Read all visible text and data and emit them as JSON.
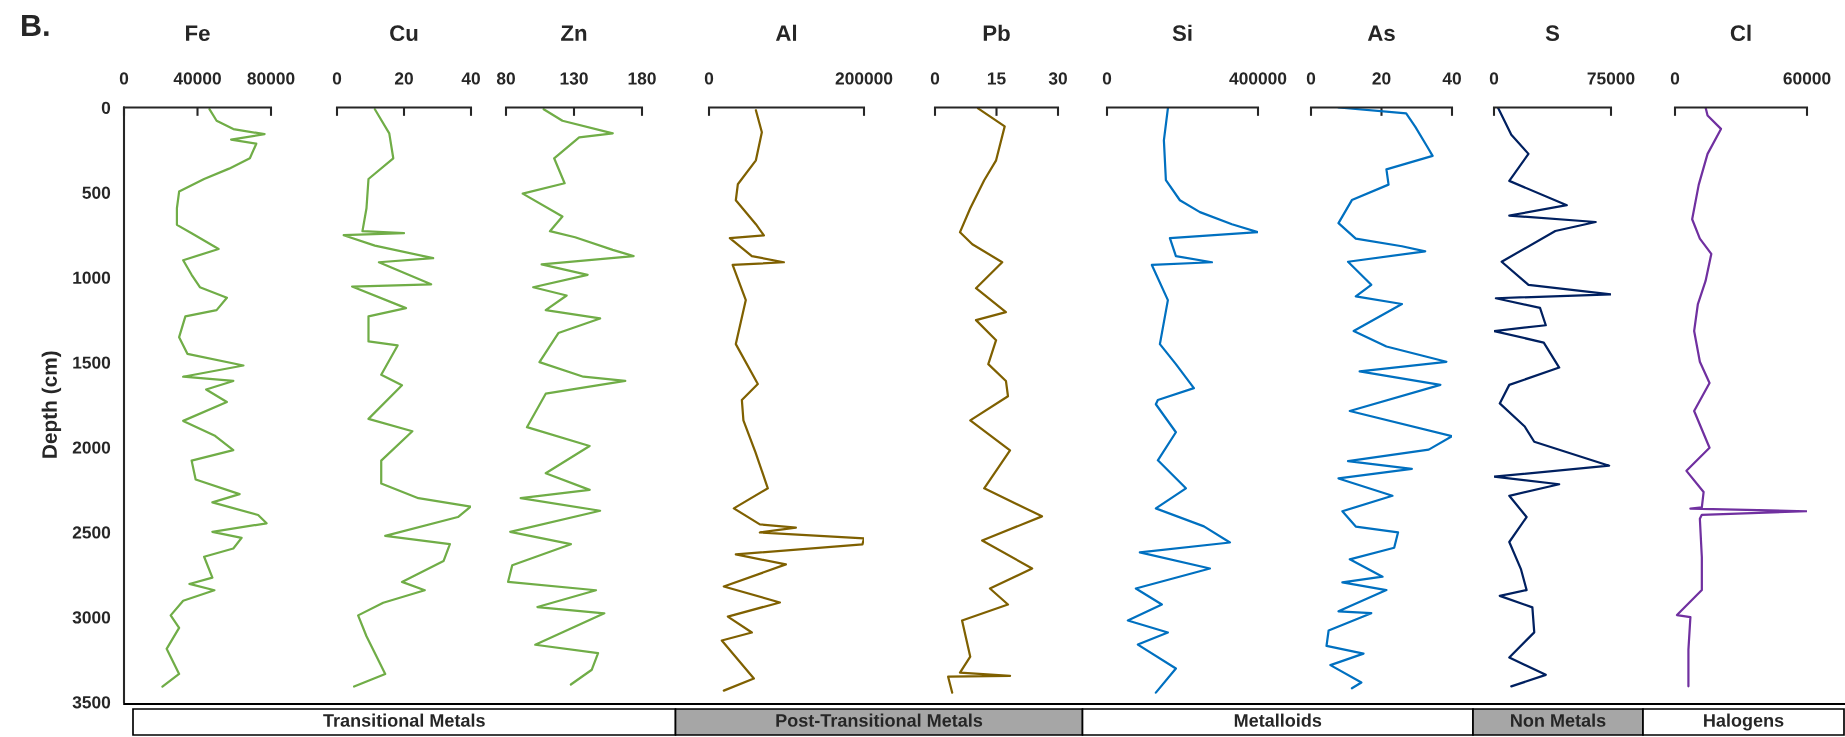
{
  "chart_data": [
    {
      "type": "line",
      "title": "Fe",
      "ylabel": "Depth (cm)",
      "annotations": [
        "B.",
        "Transitional Metals"
      ],
      "xlim": [
        0,
        80000
      ],
      "xticks": [
        0,
        40000,
        80000
      ],
      "ylim": [
        3500,
        0
      ],
      "yticks": [
        0,
        500,
        1000,
        1500,
        2000,
        2500,
        3000,
        3500
      ],
      "grid": false,
      "series": [
        {
          "color": "#70ad47",
          "x": [
            46500,
            50400,
            59500,
            76500,
            58300,
            72000,
            68500,
            57200,
            43600,
            30000,
            28800,
            28800,
            36800,
            51500,
            32200,
            36800,
            41300,
            56000,
            50400,
            33400,
            30000,
            34500,
            65000,
            32200,
            59500,
            44700,
            56000,
            32200,
            49200,
            59500,
            36800,
            39000,
            62900,
            48100,
            73000,
            77600,
            48100,
            64000,
            59500,
            43600,
            48100,
            35600,
            49200,
            32200,
            25400,
            30000,
            23200,
            30000,
            20900
          ],
          "values": [
            10,
            78,
            127,
            157,
            189,
            213,
            299,
            360,
            421,
            495,
            593,
            691,
            740,
            833,
            899,
            985,
            1058,
            1120,
            1193,
            1230,
            1352,
            1450,
            1519,
            1585,
            1610,
            1660,
            1734,
            1845,
            1931,
            2017,
            2079,
            2190,
            2276,
            2325,
            2399,
            2448,
            2498,
            2534,
            2596,
            2645,
            2768,
            2805,
            2842,
            2904,
            2990,
            3064,
            3187,
            3335,
            3409
          ]
        }
      ]
    },
    {
      "type": "line",
      "title": "Cu",
      "xlim": [
        0,
        40
      ],
      "xticks": [
        0,
        20,
        40
      ],
      "ylim": [
        3500,
        0
      ],
      "tick_labels": "x",
      "grid": false,
      "series": [
        {
          "color": "#70ad47",
          "x": [
            11.3,
            15.6,
            16.8,
            9.4,
            8.8,
            7.6,
            20.0,
            2.0,
            11.3,
            28.7,
            12.5,
            28.1,
            4.5,
            20.6,
            9.4,
            9.4,
            18.1,
            13.2,
            19.4,
            9.4,
            22.5,
            13.2,
            13.2,
            24.3,
            39.9,
            36.1,
            14.4,
            33.7,
            31.8,
            19.4,
            26.2,
            13.8,
            6.3,
            8.8,
            14.4,
            5.1
          ],
          "values": [
            10,
            152,
            299,
            421,
            593,
            728,
            740,
            752,
            813,
            887,
            911,
            1041,
            1054,
            1181,
            1230,
            1377,
            1401,
            1573,
            1635,
            1833,
            1906,
            2079,
            2214,
            2300,
            2350,
            2411,
            2522,
            2571,
            2670,
            2793,
            2842,
            2916,
            2990,
            3113,
            3335,
            3409
          ]
        }
      ]
    },
    {
      "type": "line",
      "title": "Zn",
      "xlim": [
        80,
        180
      ],
      "xticks": [
        80,
        130,
        180
      ],
      "ylim": [
        3500,
        0
      ],
      "tick_labels": "x",
      "grid": false,
      "series": [
        {
          "color": "#70ad47",
          "x": [
            107.7,
            121.5,
            158.5,
            133.8,
            115.4,
            123.1,
            92.3,
            121.5,
            112.3,
            130.8,
            158.5,
            173.8,
            106.2,
            140.0,
            100.0,
            124.6,
            109.2,
            149.2,
            118.5,
            104.6,
            136.9,
            167.7,
            109.2,
            95.4,
            141.5,
            109.2,
            141.5,
            90.8,
            149.2,
            83.1,
            127.7,
            84.6,
            81.5,
            146.2,
            103.1,
            152.3,
            101.5,
            147.7,
            143.1,
            127.7
          ],
          "values": [
            10,
            78,
            152,
            176,
            299,
            446,
            507,
            642,
            728,
            764,
            838,
            875,
            924,
            985,
            1058,
            1107,
            1193,
            1242,
            1328,
            1499,
            1585,
            1610,
            1685,
            1882,
            1993,
            2153,
            2251,
            2300,
            2374,
            2498,
            2571,
            2695,
            2793,
            2842,
            2941,
            2978,
            3163,
            3212,
            3310,
            3397
          ]
        }
      ]
    },
    {
      "type": "line",
      "title": "Al",
      "annotations": [
        "Post-Transitional Metals"
      ],
      "xlim": [
        0,
        200000
      ],
      "xticks": [
        0,
        200000
      ],
      "ylim": [
        3500,
        0
      ],
      "tick_labels": "x",
      "grid": false,
      "series": [
        {
          "color": "#7f6000",
          "x": [
            60500,
            68200,
            60500,
            37200,
            34600,
            60500,
            70800,
            26900,
            55300,
            96600,
            30500,
            47500,
            34600,
            63000,
            42400,
            44400,
            60000,
            75900,
            32000,
            65600,
            112100,
            65600,
            200000,
            198000,
            34600,
            99200,
            19100,
            91500,
            24300,
            55300,
            16500,
            57900,
            19100
          ],
          "values": [
            16,
            146,
            311,
            452,
            546,
            687,
            753,
            769,
            875,
            911,
            927,
            1134,
            1393,
            1628,
            1722,
            1842,
            2030,
            2242,
            2360,
            2454,
            2473,
            2502,
            2537,
            2572,
            2631,
            2690,
            2820,
            2914,
            2997,
            3091,
            3138,
            3362,
            3433
          ]
        }
      ]
    },
    {
      "type": "line",
      "title": "Pb",
      "xlim": [
        0,
        30
      ],
      "xticks": [
        0,
        15,
        30
      ],
      "ylim": [
        3500,
        0
      ],
      "tick_labels": "x",
      "grid": false,
      "series": [
        {
          "color": "#7f6000",
          "x": [
            10.5,
            17.0,
            14.9,
            12.0,
            8.6,
            6.1,
            9.1,
            16.4,
            10.0,
            17.3,
            10.0,
            14.9,
            13.0,
            17.3,
            17.8,
            8.6,
            18.3,
            12.0,
            26.1,
            11.5,
            23.7,
            13.4,
            17.8,
            6.6,
            8.6,
            6.1,
            18.3,
            3.2,
            4.2
          ],
          "values": [
            5,
            111,
            311,
            428,
            593,
            734,
            805,
            911,
            1064,
            1205,
            1252,
            1370,
            1511,
            1610,
            1700,
            1842,
            2018,
            2242,
            2407,
            2549,
            2714,
            2832,
            2926,
            3020,
            3233,
            3327,
            3346,
            3351,
            3445
          ]
        }
      ]
    },
    {
      "type": "line",
      "title": "Si",
      "annotations": [
        "Metalloids"
      ],
      "xlim": [
        0,
        400000
      ],
      "xticks": [
        0,
        400000
      ],
      "ylim": [
        3500,
        0
      ],
      "tick_labels": "x",
      "grid": false,
      "series": [
        {
          "color": "#0070c0",
          "x": [
            161300,
            150700,
            156000,
            193100,
            246200,
            331000,
            400000,
            166600,
            182500,
            278000,
            118800,
            161300,
            140100,
            182500,
            230200,
            134700,
            129400,
            182500,
            134700,
            209000,
            129400,
            256800,
            325700,
            87000,
            272700,
            76400,
            145400,
            55200,
            161300,
            81700,
            182500,
            129400
          ],
          "values": [
            5,
            193,
            428,
            546,
            616,
            687,
            734,
            769,
            875,
            911,
            927,
            1134,
            1393,
            1511,
            1652,
            1722,
            1747,
            1912,
            2077,
            2242,
            2360,
            2466,
            2561,
            2619,
            2714,
            2832,
            2926,
            3020,
            3091,
            3162,
            3303,
            3445
          ]
        }
      ]
    },
    {
      "type": "line",
      "title": "As",
      "xlim": [
        0,
        40
      ],
      "xticks": [
        0,
        20,
        40
      ],
      "ylim": [
        3500,
        0
      ],
      "tick_labels": "x",
      "grid": false,
      "series": [
        {
          "color": "#0070c0",
          "x": [
            7.8,
            27.0,
            29.6,
            32.9,
            34.5,
            21.4,
            22.0,
            11.6,
            7.8,
            12.7,
            25.8,
            32.4,
            10.5,
            17.1,
            12.7,
            25.8,
            12.1,
            21.4,
            38.4,
            13.8,
            36.7,
            11.0,
            40.0,
            33.4,
            10.5,
            28.6,
            7.8,
            23.1,
            8.9,
            12.7,
            24.7,
            23.6,
            11.0,
            20.3,
            8.9,
            21.4,
            7.8,
            17.1,
            5.0,
            4.4,
            14.9,
            5.5,
            14.3,
            11.6
          ],
          "values": [
            0,
            35,
            114,
            228,
            285,
            364,
            454,
            545,
            681,
            772,
            817,
            847,
            908,
            1044,
            1112,
            1157,
            1316,
            1407,
            1497,
            1554,
            1633,
            1787,
            1935,
            2014,
            2082,
            2127,
            2184,
            2286,
            2377,
            2467,
            2501,
            2592,
            2660,
            2762,
            2796,
            2841,
            2966,
            2977,
            3079,
            3170,
            3215,
            3283,
            3385,
            3419
          ]
        }
      ]
    },
    {
      "type": "line",
      "title": "S",
      "annotations": [
        "Non Metals"
      ],
      "xlim": [
        0,
        75000
      ],
      "xticks": [
        0,
        75000
      ],
      "ylim": [
        3500,
        0
      ],
      "tick_labels": "x",
      "grid": false,
      "series": [
        {
          "color": "#002060",
          "x": [
            2500,
            11100,
            22100,
            9800,
            46700,
            9800,
            65200,
            39300,
            4900,
            22100,
            75000,
            1200,
            29500,
            33200,
            0,
            31900,
            41800,
            9800,
            3700,
            19700,
            25800,
            73800,
            0,
            41800,
            9800,
            20900,
            9800,
            17200,
            20900,
            3700,
            24600,
            25800,
            9800,
            33200,
            11100
          ],
          "values": [
            0,
            160,
            273,
            432,
            575,
            636,
            674,
            727,
            908,
            1044,
            1100,
            1123,
            1180,
            1282,
            1316,
            1384,
            1531,
            1633,
            1742,
            1878,
            1968,
            2109,
            2173,
            2218,
            2286,
            2411,
            2558,
            2716,
            2841,
            2875,
            2943,
            3090,
            3238,
            3340,
            3408
          ]
        }
      ]
    },
    {
      "type": "line",
      "title": "Cl",
      "annotations": [
        "Halogens"
      ],
      "xlim": [
        0,
        60000
      ],
      "xticks": [
        0,
        60000
      ],
      "ylim": [
        3500,
        0
      ],
      "tick_labels": "x",
      "grid": false,
      "series": [
        {
          "color": "#7030a0",
          "x": [
            13900,
            14800,
            20900,
            14800,
            10800,
            7800,
            11300,
            16500,
            13900,
            10400,
            8700,
            11300,
            15700,
            8700,
            15700,
            5200,
            13000,
            12200,
            7000,
            60000,
            12200,
            11300,
            12200,
            12200,
            900,
            7000,
            6100,
            6100
          ],
          "values": [
            0,
            47,
            126,
            273,
            454,
            658,
            772,
            862,
            1021,
            1157,
            1316,
            1497,
            1622,
            1787,
            2003,
            2139,
            2264,
            2354,
            2361,
            2377,
            2398,
            2421,
            2648,
            2841,
            2988,
            3000,
            3192,
            3408
          ]
        }
      ]
    }
  ]
}
